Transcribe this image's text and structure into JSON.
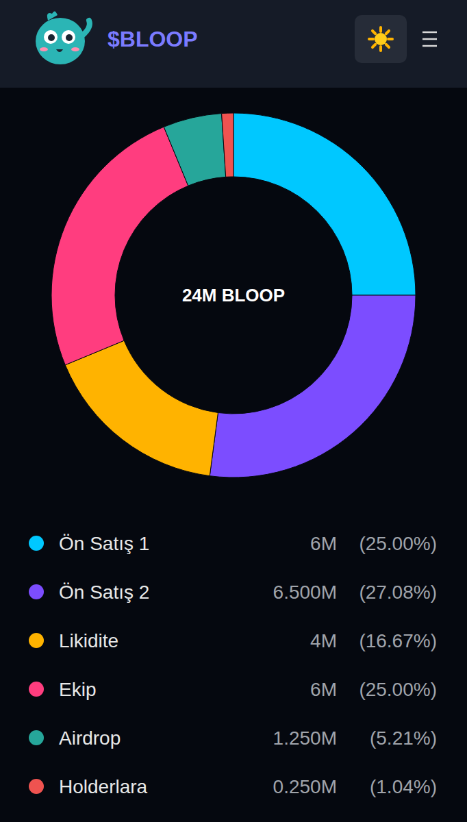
{
  "header": {
    "title": "$BLOOP"
  },
  "chart_data": {
    "type": "donut",
    "center_label": "24M BLOOP",
    "categories": [
      "Ön Satış 1",
      "Ön Satış 2",
      "Likidite",
      "Ekip",
      "Airdrop",
      "Holderlara"
    ],
    "values": [
      6,
      6.5,
      4,
      6,
      1.25,
      0.25
    ],
    "value_labels": [
      "6M",
      "6.500M",
      "4M",
      "6M",
      "1.250M",
      "0.250M"
    ],
    "percentages": [
      25.0,
      27.08,
      16.67,
      25.0,
      5.21,
      1.04
    ],
    "percentage_labels": [
      "(25.00%)",
      "(27.08%)",
      "(16.67%)",
      "(25.00%)",
      "(5.21%)",
      "(1.04%)"
    ],
    "colors": [
      "#00c8ff",
      "#7c4dff",
      "#ffb300",
      "#ff3d7f",
      "#26a69a",
      "#ef5350"
    ],
    "legend": "bottom"
  }
}
